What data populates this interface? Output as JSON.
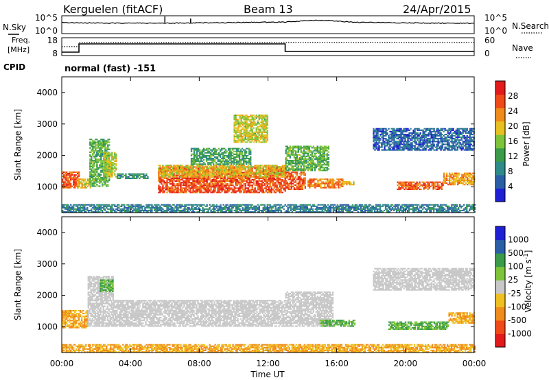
{
  "header": {
    "station": "Kerguelen (fitACF)",
    "beam": "Beam 13",
    "date": "24/Apr/2015"
  },
  "panels": {
    "nsky": {
      "label": "N.Sky",
      "ticks_left": [
        "10^5",
        "10^0"
      ],
      "right_label": "N.Search",
      "ticks_right": [
        "10^5",
        "10^0"
      ]
    },
    "freq": {
      "label_top": "Freq.",
      "label_bottom": "[MHz]",
      "ticks_left": [
        "18",
        "8"
      ],
      "right_label": "Nave",
      "ticks_right": [
        "60",
        "0"
      ]
    },
    "cpid": {
      "label": "CPID",
      "value": "normal (fast) -151"
    }
  },
  "colors": {
    "ground_scatter": "#c8c8c8",
    "power_scale": [
      "#1f1fd6",
      "#2a5fa8",
      "#2f8a8a",
      "#3a9c4a",
      "#7ec43a",
      "#e8c020",
      "#f08c1a",
      "#f04a18",
      "#e31a1c"
    ],
    "velocity_scale": [
      "#e31a1c",
      "#f04a18",
      "#f08c1a",
      "#f0c020",
      "#c8c8c8",
      "#7ec43a",
      "#3a9c4a",
      "#2a5fa8",
      "#1f1fd6"
    ]
  },
  "chart_data": [
    {
      "type": "heatmap",
      "name": "power",
      "xlabel": "",
      "ylabel": "Slant Range [km]",
      "xlim": [
        0,
        24
      ],
      "ylim": [
        180,
        4500
      ],
      "yticks": [
        1000,
        2000,
        3000,
        4000
      ],
      "colorbar": {
        "label": "Power [dB]",
        "range": [
          0,
          32
        ],
        "ticks": [
          4,
          8,
          12,
          16,
          20,
          24,
          28
        ]
      },
      "regions": [
        {
          "t0": 0.0,
          "t1": 1.0,
          "r0": 950,
          "r1": 1450,
          "value": 26
        },
        {
          "t0": 0.9,
          "t1": 1.7,
          "r0": 950,
          "r1": 1250,
          "value": 20
        },
        {
          "t0": 1.6,
          "t1": 2.8,
          "r0": 1000,
          "r1": 2500,
          "value": 14
        },
        {
          "t0": 2.4,
          "t1": 3.2,
          "r0": 1300,
          "r1": 2100,
          "value": 18
        },
        {
          "t0": 3.2,
          "t1": 5.0,
          "r0": 1250,
          "r1": 1400,
          "value": 10
        },
        {
          "t0": 5.6,
          "t1": 13.0,
          "r0": 800,
          "r1": 1650,
          "value": 27
        },
        {
          "t0": 5.6,
          "t1": 13.0,
          "r0": 1300,
          "r1": 1700,
          "value": 20
        },
        {
          "t0": 7.5,
          "t1": 11.0,
          "r0": 1700,
          "r1": 2200,
          "value": 12
        },
        {
          "t0": 10.0,
          "t1": 12.0,
          "r0": 2400,
          "r1": 3300,
          "value": 18
        },
        {
          "t0": 13.0,
          "t1": 14.2,
          "r0": 900,
          "r1": 1450,
          "value": 26
        },
        {
          "t0": 13.0,
          "t1": 15.5,
          "r0": 1500,
          "r1": 2300,
          "value": 14
        },
        {
          "t0": 14.3,
          "t1": 16.3,
          "r0": 950,
          "r1": 1250,
          "value": 24
        },
        {
          "t0": 16.3,
          "t1": 17.0,
          "r0": 1050,
          "r1": 1150,
          "value": 20
        },
        {
          "t0": 18.1,
          "t1": 24.0,
          "r0": 2150,
          "r1": 2850,
          "value": 6
        },
        {
          "t0": 19.5,
          "t1": 22.2,
          "r0": 900,
          "r1": 1150,
          "value": 26
        },
        {
          "t0": 22.2,
          "t1": 24.0,
          "r0": 1050,
          "r1": 1450,
          "value": 22
        },
        {
          "t0": 0.0,
          "t1": 24.0,
          "r0": 180,
          "r1": 450,
          "value": 8
        }
      ]
    },
    {
      "type": "heatmap",
      "name": "velocity",
      "xlabel": "Time UT",
      "ylabel": "Slant Range [km]",
      "xlim": [
        0,
        24
      ],
      "ylim": [
        180,
        4500
      ],
      "yticks": [
        1000,
        2000,
        3000,
        4000
      ],
      "xticks": [
        "00:00",
        "04:00",
        "08:00",
        "12:00",
        "16:00",
        "20:00",
        "00:00"
      ],
      "colorbar": {
        "label": "Velocity [m s^-1]",
        "ticks": [
          "1000",
          "500",
          "100",
          "25",
          "-25",
          "-100",
          "-500",
          "-1000"
        ]
      },
      "regions": [
        {
          "t0": 0.0,
          "t1": 1.5,
          "r0": 950,
          "r1": 1500,
          "value": -100
        },
        {
          "t0": 1.5,
          "t1": 3.0,
          "r0": 1000,
          "r1": 2600,
          "value": 0
        },
        {
          "t0": 2.2,
          "t1": 3.0,
          "r0": 2100,
          "r1": 2500,
          "value": 100
        },
        {
          "t0": 3.0,
          "t1": 13.0,
          "r0": 1000,
          "r1": 1850,
          "value": 0
        },
        {
          "t0": 13.0,
          "t1": 15.8,
          "r0": 1000,
          "r1": 2100,
          "value": 0
        },
        {
          "t0": 15.0,
          "t1": 17.0,
          "r0": 1000,
          "r1": 1200,
          "value": 100
        },
        {
          "t0": 18.1,
          "t1": 24.0,
          "r0": 2150,
          "r1": 2850,
          "value": 0
        },
        {
          "t0": 19.0,
          "t1": 22.5,
          "r0": 900,
          "r1": 1150,
          "value": 100
        },
        {
          "t0": 22.5,
          "t1": 24.0,
          "r0": 1100,
          "r1": 1450,
          "value": -100
        },
        {
          "t0": 0.0,
          "t1": 24.0,
          "r0": 180,
          "r1": 450,
          "value": -100
        }
      ]
    }
  ]
}
